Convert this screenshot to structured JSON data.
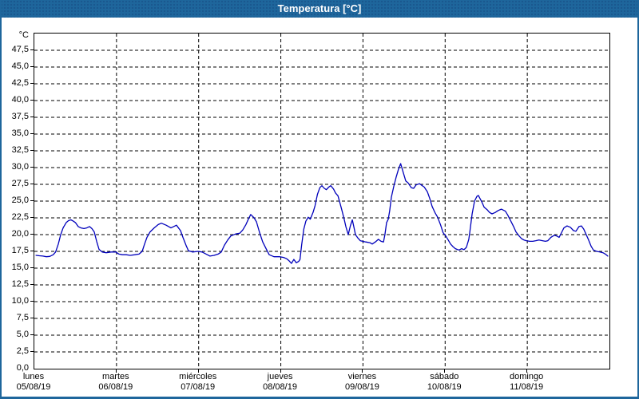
{
  "window": {
    "title": "Temperatura [°C]"
  },
  "colors": {
    "titlebar": "#1e669c",
    "window_border": "#1e669c",
    "plot_border": "#000000",
    "grid": "#000000",
    "line": "#0000bb",
    "background": "#ffffff",
    "title_text": "#ffffff"
  },
  "chart_data": {
    "type": "line",
    "title": "Temperatura [°C]",
    "y_unit_label": "°C",
    "ylim": [
      0,
      50
    ],
    "ytick_step": 2.5,
    "ytick_labels": [
      "0,0",
      "2,5",
      "5,0",
      "7,5",
      "10,0",
      "12,5",
      "15,0",
      "17,5",
      "20,0",
      "22,5",
      "25,0",
      "27,5",
      "30,0",
      "32,5",
      "35,0",
      "37,5",
      "40,0",
      "42,5",
      "45,0",
      "47,5"
    ],
    "grid": "dashed",
    "x_total_hours": 168,
    "x_days": [
      {
        "name": "lunes",
        "date": "05/08/19"
      },
      {
        "name": "martes",
        "date": "06/08/19"
      },
      {
        "name": "miércoles",
        "date": "07/08/19"
      },
      {
        "name": "jueves",
        "date": "08/08/19"
      },
      {
        "name": "viernes",
        "date": "09/08/19"
      },
      {
        "name": "sábado",
        "date": "10/08/19"
      },
      {
        "name": "domingo",
        "date": "11/08/19"
      }
    ],
    "series": [
      {
        "name": "Temperatura",
        "color": "#0000bb",
        "points": [
          [
            0.5,
            16.9
          ],
          [
            1.5,
            16.85
          ],
          [
            2.5,
            16.8
          ],
          [
            3.5,
            16.7
          ],
          [
            4.5,
            16.75
          ],
          [
            5.5,
            17.0
          ],
          [
            6.2,
            17.4
          ],
          [
            7.0,
            18.6
          ],
          [
            7.7,
            20.0
          ],
          [
            8.4,
            21.0
          ],
          [
            9.3,
            21.8
          ],
          [
            10.0,
            22.1
          ],
          [
            10.7,
            22.2
          ],
          [
            11.4,
            22.0
          ],
          [
            12.0,
            21.8
          ],
          [
            12.8,
            21.2
          ],
          [
            13.6,
            21.0
          ],
          [
            14.5,
            20.9
          ],
          [
            15.3,
            21.0
          ],
          [
            16.1,
            21.2
          ],
          [
            16.8,
            20.9
          ],
          [
            17.5,
            20.4
          ],
          [
            18.2,
            19.0
          ],
          [
            18.9,
            17.8
          ],
          [
            19.8,
            17.4
          ],
          [
            21.0,
            17.3
          ],
          [
            22.4,
            17.4
          ],
          [
            23.8,
            17.4
          ],
          [
            24.7,
            17.1
          ],
          [
            25.7,
            17.0
          ],
          [
            26.8,
            17.0
          ],
          [
            28.0,
            16.9
          ],
          [
            29.4,
            17.0
          ],
          [
            30.6,
            17.1
          ],
          [
            31.5,
            17.5
          ],
          [
            32.2,
            18.6
          ],
          [
            32.9,
            19.6
          ],
          [
            33.8,
            20.4
          ],
          [
            35.0,
            21.0
          ],
          [
            36.2,
            21.5
          ],
          [
            37.1,
            21.7
          ],
          [
            38.5,
            21.4
          ],
          [
            39.9,
            21.0
          ],
          [
            40.7,
            21.2
          ],
          [
            41.5,
            21.4
          ],
          [
            42.7,
            20.6
          ],
          [
            43.4,
            19.6
          ],
          [
            44.3,
            18.4
          ],
          [
            45.0,
            17.6
          ],
          [
            46.2,
            17.4
          ],
          [
            47.8,
            17.5
          ],
          [
            49.0,
            17.4
          ],
          [
            50.2,
            17.1
          ],
          [
            51.3,
            16.8
          ],
          [
            52.5,
            16.9
          ],
          [
            53.7,
            17.1
          ],
          [
            54.6,
            17.4
          ],
          [
            55.5,
            18.4
          ],
          [
            56.5,
            19.2
          ],
          [
            57.4,
            19.8
          ],
          [
            58.8,
            20.1
          ],
          [
            60.0,
            20.2
          ],
          [
            60.9,
            20.7
          ],
          [
            61.8,
            21.5
          ],
          [
            62.5,
            22.3
          ],
          [
            63.2,
            23.0
          ],
          [
            64.2,
            22.5
          ],
          [
            64.9,
            21.9
          ],
          [
            65.8,
            20.3
          ],
          [
            66.7,
            18.9
          ],
          [
            67.7,
            17.9
          ],
          [
            68.6,
            17.0
          ],
          [
            70.0,
            16.7
          ],
          [
            71.6,
            16.7
          ],
          [
            72.8,
            16.6
          ],
          [
            73.7,
            16.4
          ],
          [
            74.4,
            16.1
          ],
          [
            75.1,
            15.7
          ],
          [
            75.8,
            16.3
          ],
          [
            76.5,
            15.8
          ],
          [
            77.2,
            16.0
          ],
          [
            77.6,
            16.3
          ],
          [
            78.1,
            18.5
          ],
          [
            78.7,
            20.8
          ],
          [
            79.3,
            22.0
          ],
          [
            80.0,
            22.6
          ],
          [
            80.6,
            22.3
          ],
          [
            81.4,
            23.3
          ],
          [
            82.0,
            24.3
          ],
          [
            82.7,
            26.0
          ],
          [
            83.4,
            27.0
          ],
          [
            84.0,
            27.3
          ],
          [
            84.7,
            26.9
          ],
          [
            85.3,
            26.7
          ],
          [
            86.0,
            27.1
          ],
          [
            86.6,
            27.3
          ],
          [
            87.4,
            26.8
          ],
          [
            88.0,
            26.2
          ],
          [
            88.7,
            25.8
          ],
          [
            89.4,
            24.5
          ],
          [
            89.8,
            23.7
          ],
          [
            90.5,
            22.3
          ],
          [
            91.0,
            21.2
          ],
          [
            91.7,
            20.0
          ],
          [
            92.3,
            21.3
          ],
          [
            92.9,
            22.2
          ],
          [
            93.4,
            21.0
          ],
          [
            93.8,
            20.0
          ],
          [
            94.5,
            19.5
          ],
          [
            95.2,
            19.1
          ],
          [
            95.9,
            19.0
          ],
          [
            96.8,
            18.9
          ],
          [
            98.0,
            18.8
          ],
          [
            98.7,
            18.6
          ],
          [
            99.6,
            18.9
          ],
          [
            100.5,
            19.3
          ],
          [
            101.3,
            19.0
          ],
          [
            102.0,
            18.9
          ],
          [
            102.4,
            20.0
          ],
          [
            102.9,
            21.8
          ],
          [
            103.4,
            22.3
          ],
          [
            103.8,
            23.6
          ],
          [
            104.3,
            25.6
          ],
          [
            105.0,
            27.2
          ],
          [
            105.7,
            28.6
          ],
          [
            106.4,
            29.8
          ],
          [
            107.0,
            30.6
          ],
          [
            107.8,
            29.2
          ],
          [
            108.5,
            28.0
          ],
          [
            109.2,
            27.7
          ],
          [
            110.1,
            27.0
          ],
          [
            110.8,
            26.9
          ],
          [
            111.5,
            27.4
          ],
          [
            112.5,
            27.6
          ],
          [
            113.9,
            27.1
          ],
          [
            114.8,
            26.4
          ],
          [
            115.5,
            25.4
          ],
          [
            116.2,
            24.2
          ],
          [
            117.1,
            23.2
          ],
          [
            117.8,
            22.6
          ],
          [
            118.7,
            21.4
          ],
          [
            119.4,
            20.3
          ],
          [
            120.2,
            19.8
          ],
          [
            120.9,
            19.2
          ],
          [
            121.6,
            18.6
          ],
          [
            122.3,
            18.2
          ],
          [
            123.0,
            17.9
          ],
          [
            123.7,
            17.75
          ],
          [
            124.1,
            17.7
          ],
          [
            124.8,
            17.9
          ],
          [
            125.5,
            17.75
          ],
          [
            126.2,
            18.1
          ],
          [
            126.9,
            19.3
          ],
          [
            127.2,
            20.3
          ],
          [
            127.9,
            23.1
          ],
          [
            128.6,
            25.0
          ],
          [
            129.3,
            25.7
          ],
          [
            129.7,
            25.85
          ],
          [
            130.7,
            24.9
          ],
          [
            131.4,
            24.1
          ],
          [
            132.3,
            23.7
          ],
          [
            133.0,
            23.3
          ],
          [
            133.7,
            23.1
          ],
          [
            134.6,
            23.3
          ],
          [
            135.5,
            23.6
          ],
          [
            136.4,
            23.8
          ],
          [
            137.6,
            23.5
          ],
          [
            138.3,
            22.9
          ],
          [
            139.2,
            22.0
          ],
          [
            140.0,
            21.2
          ],
          [
            140.7,
            20.4
          ],
          [
            141.6,
            19.8
          ],
          [
            142.3,
            19.4
          ],
          [
            143.0,
            19.2
          ],
          [
            143.7,
            19.1
          ],
          [
            144.7,
            19.0
          ],
          [
            145.6,
            19.0
          ],
          [
            146.5,
            19.1
          ],
          [
            147.4,
            19.2
          ],
          [
            148.4,
            19.1
          ],
          [
            149.3,
            19.0
          ],
          [
            150.0,
            19.1
          ],
          [
            150.9,
            19.6
          ],
          [
            151.9,
            19.9
          ],
          [
            152.6,
            19.8
          ],
          [
            153.3,
            19.6
          ],
          [
            154.0,
            20.3
          ],
          [
            154.7,
            21.0
          ],
          [
            155.6,
            21.3
          ],
          [
            156.6,
            21.1
          ],
          [
            157.5,
            20.6
          ],
          [
            158.2,
            20.5
          ],
          [
            159.1,
            21.2
          ],
          [
            159.8,
            21.3
          ],
          [
            160.5,
            20.8
          ],
          [
            161.2,
            20.0
          ],
          [
            161.9,
            19.2
          ],
          [
            162.6,
            18.3
          ],
          [
            163.3,
            17.7
          ],
          [
            164.3,
            17.5
          ],
          [
            165.2,
            17.4
          ],
          [
            166.1,
            17.3
          ],
          [
            166.8,
            17.1
          ],
          [
            167.5,
            16.8
          ]
        ]
      }
    ]
  }
}
